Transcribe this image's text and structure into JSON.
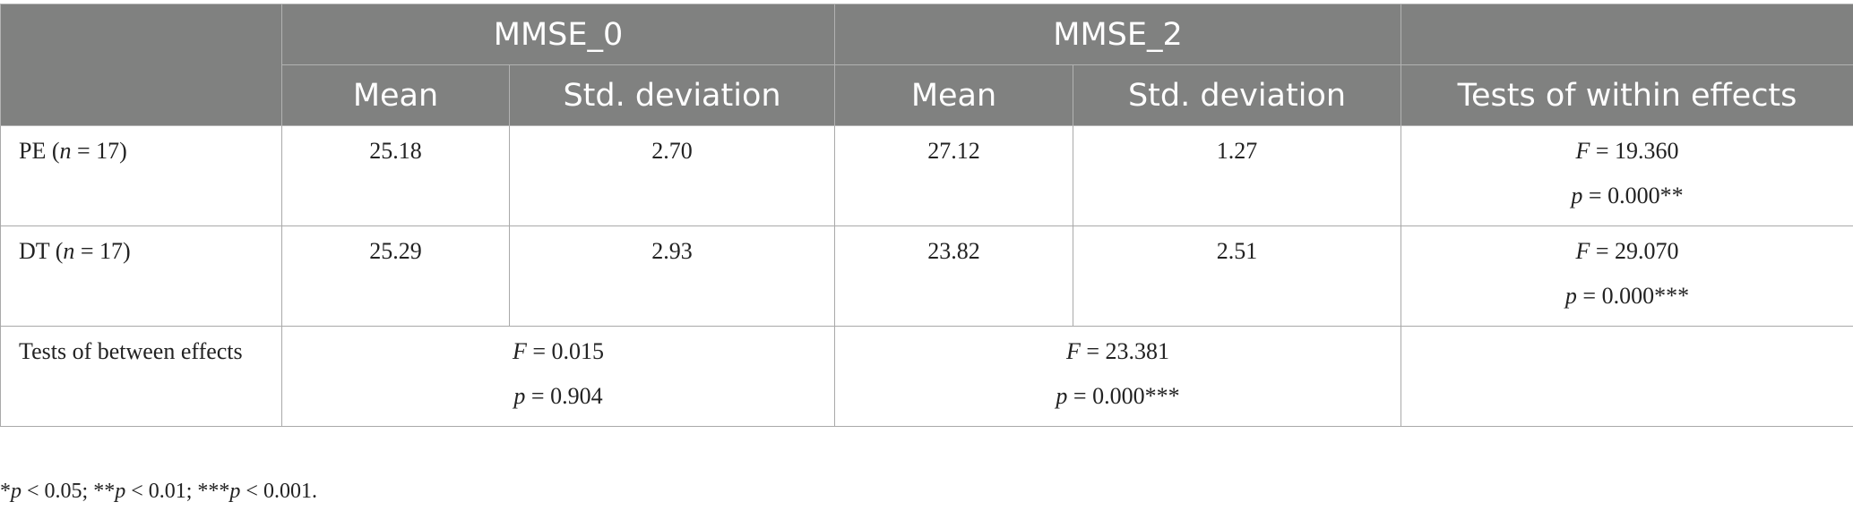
{
  "table": {
    "header": {
      "group_1": "MMSE_0",
      "group_2": "MMSE_2",
      "mean": "Mean",
      "std": "Std. deviation",
      "within": "Tests of within effects"
    },
    "rows": [
      {
        "label_prefix": "PE (",
        "label_n": "n",
        "label_suffix": " = 17)",
        "mmse0_mean": "25.18",
        "mmse0_std": "2.70",
        "mmse2_mean": "27.12",
        "mmse2_std": "1.27",
        "within_f_sym": "F",
        "within_f_val": " = 19.360",
        "within_p_sym": "p",
        "within_p_val": " = 0.000**"
      },
      {
        "label_prefix": "DT (",
        "label_n": "n",
        "label_suffix": " = 17)",
        "mmse0_mean": "25.29",
        "mmse0_std": "2.93",
        "mmse2_mean": "23.82",
        "mmse2_std": "2.51",
        "within_f_sym": "F",
        "within_f_val": " = 29.070",
        "within_p_sym": "p",
        "within_p_val": " = 0.000***"
      }
    ],
    "between": {
      "label": "Tests of between effects",
      "mmse0_f_sym": "F",
      "mmse0_f_val": " = 0.015",
      "mmse0_p_sym": "p",
      "mmse0_p_val": " = 0.904",
      "mmse2_f_sym": "F",
      "mmse2_f_val": " = 23.381",
      "mmse2_p_sym": "p",
      "mmse2_p_val": " = 0.000***"
    }
  },
  "footnote": {
    "s1_stars": "*",
    "s1_sym": "p",
    "s1_text": " < 0.05; ",
    "s2_stars": "**",
    "s2_sym": "p",
    "s2_text": " < 0.01; ",
    "s3_stars": "***",
    "s3_sym": "p",
    "s3_text": " < 0.001."
  }
}
